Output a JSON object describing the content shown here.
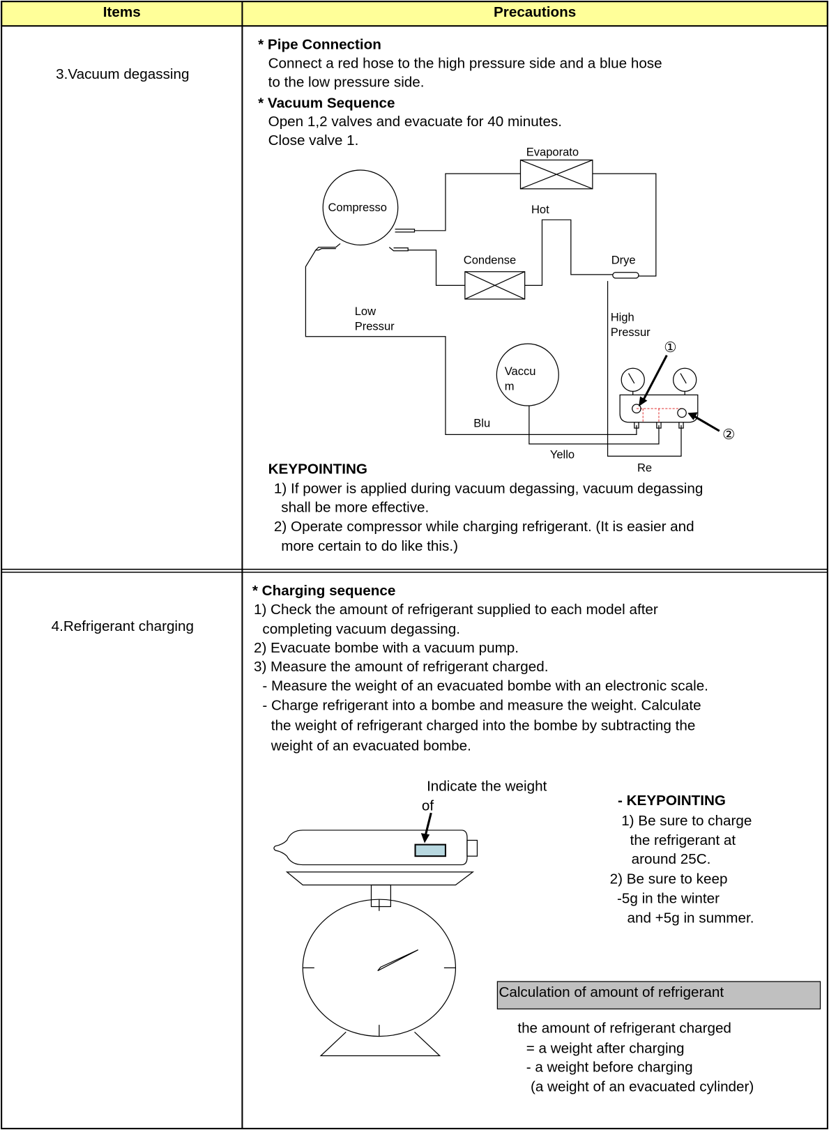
{
  "header": {
    "items": "Items",
    "precautions": "Precautions"
  },
  "row1": {
    "item": "3.Vacuum degassing",
    "pipe_heading": "* Pipe Connection",
    "pipe_lines": [
      "Connect a red hose to the high pressure side and a blue hose",
      "to the low pressure side."
    ],
    "vacuum_heading": "* Vacuum Sequence",
    "vacuum_lines": [
      "Open 1,2 valves and evacuate for 40 minutes.",
      "Close valve 1."
    ],
    "diagram": {
      "evaporator": "Evaporato",
      "compressor": "Compresso",
      "hot": "Hot",
      "condenser": "Condense",
      "dryer": "Drye",
      "low": [
        "Low",
        "Pressur"
      ],
      "high": [
        "High",
        "Pressur"
      ],
      "vacuum": [
        "Vaccu",
        "m"
      ],
      "blue": "Blu",
      "yellow": "Yello",
      "red": "Re",
      "valve1": "①",
      "valve2": "②"
    },
    "keypointing_heading": "KEYPOINTING",
    "keypointing_lines": [
      "1) If power is applied during vacuum degassing, vacuum degassing",
      "shall be more effective.",
      "2) Operate compressor while charging refrigerant. (It is easier and",
      "more certain to do like this.)"
    ]
  },
  "row2": {
    "item": "4.Refrigerant charging",
    "charging_heading": "* Charging sequence",
    "charging_lines": [
      "1) Check the amount of refrigerant supplied to each model after",
      "completing vacuum degassing.",
      "2) Evacuate bombe with a vacuum pump.",
      "3) Measure the amount of refrigerant charged.",
      "- Measure the weight of an evacuated bombe with an electronic scale.",
      "- Charge refrigerant into a bombe and measure the weight. Calculate",
      "the weight of refrigerant charged into the bombe by subtracting the",
      "weight of an evacuated bombe."
    ],
    "indicate_lines": [
      "Indicate the weight",
      "of"
    ],
    "keypointing_heading": "- KEYPOINTING",
    "keypointing_lines": [
      "1) Be sure to charge",
      "the refrigerant at",
      "around 25C.",
      "2) Be sure to keep",
      "-5g in the winter",
      "and +5g in summer."
    ],
    "calc_title": "Calculation of amount of refrigerant",
    "calc_lines": [
      "the amount of refrigerant charged",
      "= a weight after charging",
      "- a weight before charging",
      "(a weight of an evacuated cylinder)"
    ]
  }
}
